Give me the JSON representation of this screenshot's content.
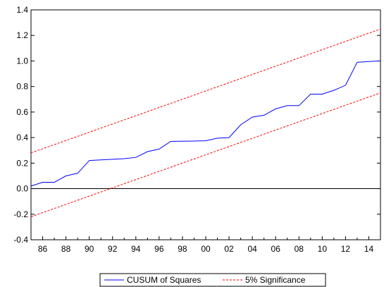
{
  "chart_data": {
    "type": "line",
    "title": "",
    "xlabel": "",
    "ylabel": "",
    "xlim": [
      1985,
      2015
    ],
    "ylim": [
      -0.4,
      1.4
    ],
    "y_ticks": [
      "-0.4",
      "-0.2",
      "0.0",
      "0.2",
      "0.4",
      "0.6",
      "0.8",
      "1.0",
      "1.2",
      "1.4"
    ],
    "y_tick_values": [
      -0.4,
      -0.2,
      0.0,
      0.2,
      0.4,
      0.6,
      0.8,
      1.0,
      1.2,
      1.4
    ],
    "x_ticks": [
      "86",
      "88",
      "90",
      "92",
      "94",
      "96",
      "98",
      "00",
      "02",
      "04",
      "06",
      "08",
      "10",
      "12",
      "14"
    ],
    "x_tick_values": [
      1986,
      1988,
      1990,
      1992,
      1994,
      1996,
      1998,
      2000,
      2002,
      2004,
      2006,
      2008,
      2010,
      2012,
      2014
    ],
    "zero_line": 0.0,
    "grid": false,
    "legend_position": "bottom-center",
    "series": [
      {
        "name": "CUSUM of Squares",
        "color": "#0000ff",
        "style": "solid",
        "x": [
          1985,
          1986,
          1987,
          1988,
          1989,
          1990,
          1991,
          1992,
          1993,
          1994,
          1995,
          1996,
          1997,
          1998,
          1999,
          2000,
          2001,
          2002,
          2003,
          2004,
          2005,
          2006,
          2007,
          2008,
          2009,
          2010,
          2011,
          2012,
          2013,
          2014,
          2015
        ],
        "y": [
          0.02,
          0.05,
          0.05,
          0.1,
          0.12,
          0.22,
          0.225,
          0.23,
          0.235,
          0.245,
          0.29,
          0.31,
          0.37,
          0.372,
          0.373,
          0.375,
          0.395,
          0.4,
          0.5,
          0.56,
          0.575,
          0.625,
          0.65,
          0.65,
          0.74,
          0.74,
          0.77,
          0.81,
          0.99,
          0.995,
          1.0
        ]
      },
      {
        "name": "5% Significance",
        "color": "#ff0000",
        "style": "dashed",
        "x": [
          1985,
          2015
        ],
        "y": [
          0.28,
          1.25
        ]
      },
      {
        "name": "",
        "color": "#ff0000",
        "style": "dashed",
        "x": [
          1985,
          2015
        ],
        "y": [
          -0.22,
          0.75
        ]
      }
    ]
  },
  "legend": {
    "items": [
      {
        "label": "CUSUM of Squares",
        "color": "#0000ff",
        "style": "solid"
      },
      {
        "label": "5% Significance",
        "color": "#ff0000",
        "style": "dashed"
      }
    ]
  }
}
